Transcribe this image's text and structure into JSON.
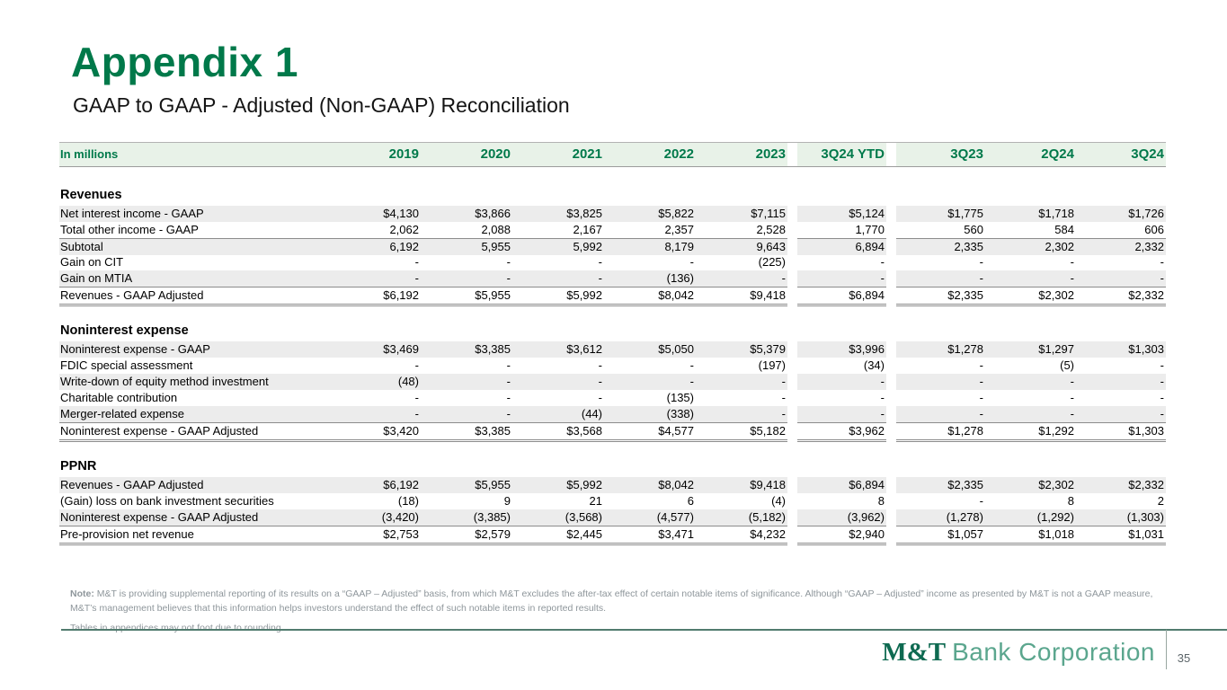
{
  "slide": {
    "title": "Appendix 1",
    "subtitle": "GAAP to GAAP - Adjusted (Non-GAAP) Reconciliation",
    "page_number": "35",
    "logo_bold": "M&T",
    "logo_rest": "Bank Corporation"
  },
  "colors": {
    "brand_green": "#00794A",
    "header_band_bg": "#E8F2E8",
    "row_stripe": "#ECECEC",
    "rule_gray": "#8C8C8C",
    "footer_line": "#517B6E",
    "note_text": "#8E969B"
  },
  "table": {
    "unit_label": "In millions",
    "columns": [
      "2019",
      "2020",
      "2021",
      "2022",
      "2023",
      "3Q24 YTD",
      "3Q23",
      "2Q24",
      "3Q24"
    ],
    "sections": [
      {
        "heading": "Revenues",
        "rows": [
          {
            "label": "Net interest income - GAAP",
            "values": [
              "$4,130",
              "$3,866",
              "$3,825",
              "$5,822",
              "$7,115",
              "$5,124",
              "$1,775",
              "$1,718",
              "$1,726"
            ],
            "stripe": true
          },
          {
            "label": "Total other income - GAAP",
            "values": [
              "2,062",
              "2,088",
              "2,167",
              "2,357",
              "2,528",
              "1,770",
              "560",
              "584",
              "606"
            ]
          },
          {
            "label": "Subtotal",
            "values": [
              "6,192",
              "5,955",
              "5,992",
              "8,179",
              "9,643",
              "6,894",
              "2,335",
              "2,302",
              "2,332"
            ],
            "stripe": true,
            "rule_top": true
          },
          {
            "label": "Gain on CIT",
            "values": [
              "-",
              "-",
              "-",
              "-",
              "(225)",
              "-",
              "-",
              "-",
              "-"
            ]
          },
          {
            "label": "Gain on MTIA",
            "values": [
              "-",
              "-",
              "-",
              "(136)",
              "-",
              "-",
              "-",
              "-",
              "-"
            ],
            "stripe": true
          },
          {
            "label": "Revenues - GAAP Adjusted",
            "values": [
              "$6,192",
              "$5,955",
              "$5,992",
              "$8,042",
              "$9,418",
              "$6,894",
              "$2,335",
              "$2,302",
              "$2,332"
            ],
            "total": true
          }
        ]
      },
      {
        "heading": "Noninterest expense",
        "rows": [
          {
            "label": "Noninterest expense - GAAP",
            "values": [
              "$3,469",
              "$3,385",
              "$3,612",
              "$5,050",
              "$5,379",
              "$3,996",
              "$1,278",
              "$1,297",
              "$1,303"
            ],
            "stripe": true
          },
          {
            "label": "FDIC special assessment",
            "values": [
              "-",
              "-",
              "-",
              "-",
              "(197)",
              "(34)",
              "-",
              "(5)",
              "-"
            ]
          },
          {
            "label": "Write-down of equity method investment",
            "values": [
              "(48)",
              "-",
              "-",
              "-",
              "-",
              "-",
              "-",
              "-",
              "-"
            ],
            "stripe": true
          },
          {
            "label": "Charitable contribution",
            "values": [
              "-",
              "-",
              "-",
              "(135)",
              "-",
              "-",
              "-",
              "-",
              "-"
            ]
          },
          {
            "label": "Merger-related expense",
            "values": [
              "-",
              "-",
              "(44)",
              "(338)",
              "-",
              "-",
              "-",
              "-",
              "-"
            ],
            "stripe": true
          },
          {
            "label": "Noninterest expense - GAAP Adjusted",
            "values": [
              "$3,420",
              "$3,385",
              "$3,568",
              "$4,577",
              "$5,182",
              "$3,962",
              "$1,278",
              "$1,292",
              "$1,303"
            ],
            "total": true
          }
        ]
      },
      {
        "heading": "PPNR",
        "rows": [
          {
            "label": "Revenues - GAAP Adjusted",
            "values": [
              "$6,192",
              "$5,955",
              "$5,992",
              "$8,042",
              "$9,418",
              "$6,894",
              "$2,335",
              "$2,302",
              "$2,332"
            ],
            "stripe": true
          },
          {
            "label": "(Gain) loss on bank investment securities",
            "values": [
              "(18)",
              "9",
              "21",
              "6",
              "(4)",
              "8",
              "-",
              "8",
              "2"
            ]
          },
          {
            "label": "Noninterest expense - GAAP Adjusted",
            "values": [
              "(3,420)",
              "(3,385)",
              "(3,568)",
              "(4,577)",
              "(5,182)",
              "(3,962)",
              "(1,278)",
              "(1,292)",
              "(1,303)"
            ],
            "stripe": true
          },
          {
            "label": "Pre-provision net revenue",
            "values": [
              "$2,753",
              "$2,579",
              "$2,445",
              "$3,471",
              "$4,232",
              "$2,940",
              "$1,057",
              "$1,018",
              "$1,031"
            ],
            "total": true
          }
        ]
      }
    ]
  },
  "notes": {
    "prefix": "Note:",
    "body": " M&T is providing supplemental reporting of its results on a “GAAP – Adjusted” basis, from which M&T excludes the after-tax effect of certain notable items of significance. Although “GAAP – Adjusted” income as presented by M&T is not a GAAP measure, M&T’s management believes that this information helps investors understand the effect of such notable items in reported results.",
    "footnote": "Tables in appendices may not foot due to rounding."
  }
}
